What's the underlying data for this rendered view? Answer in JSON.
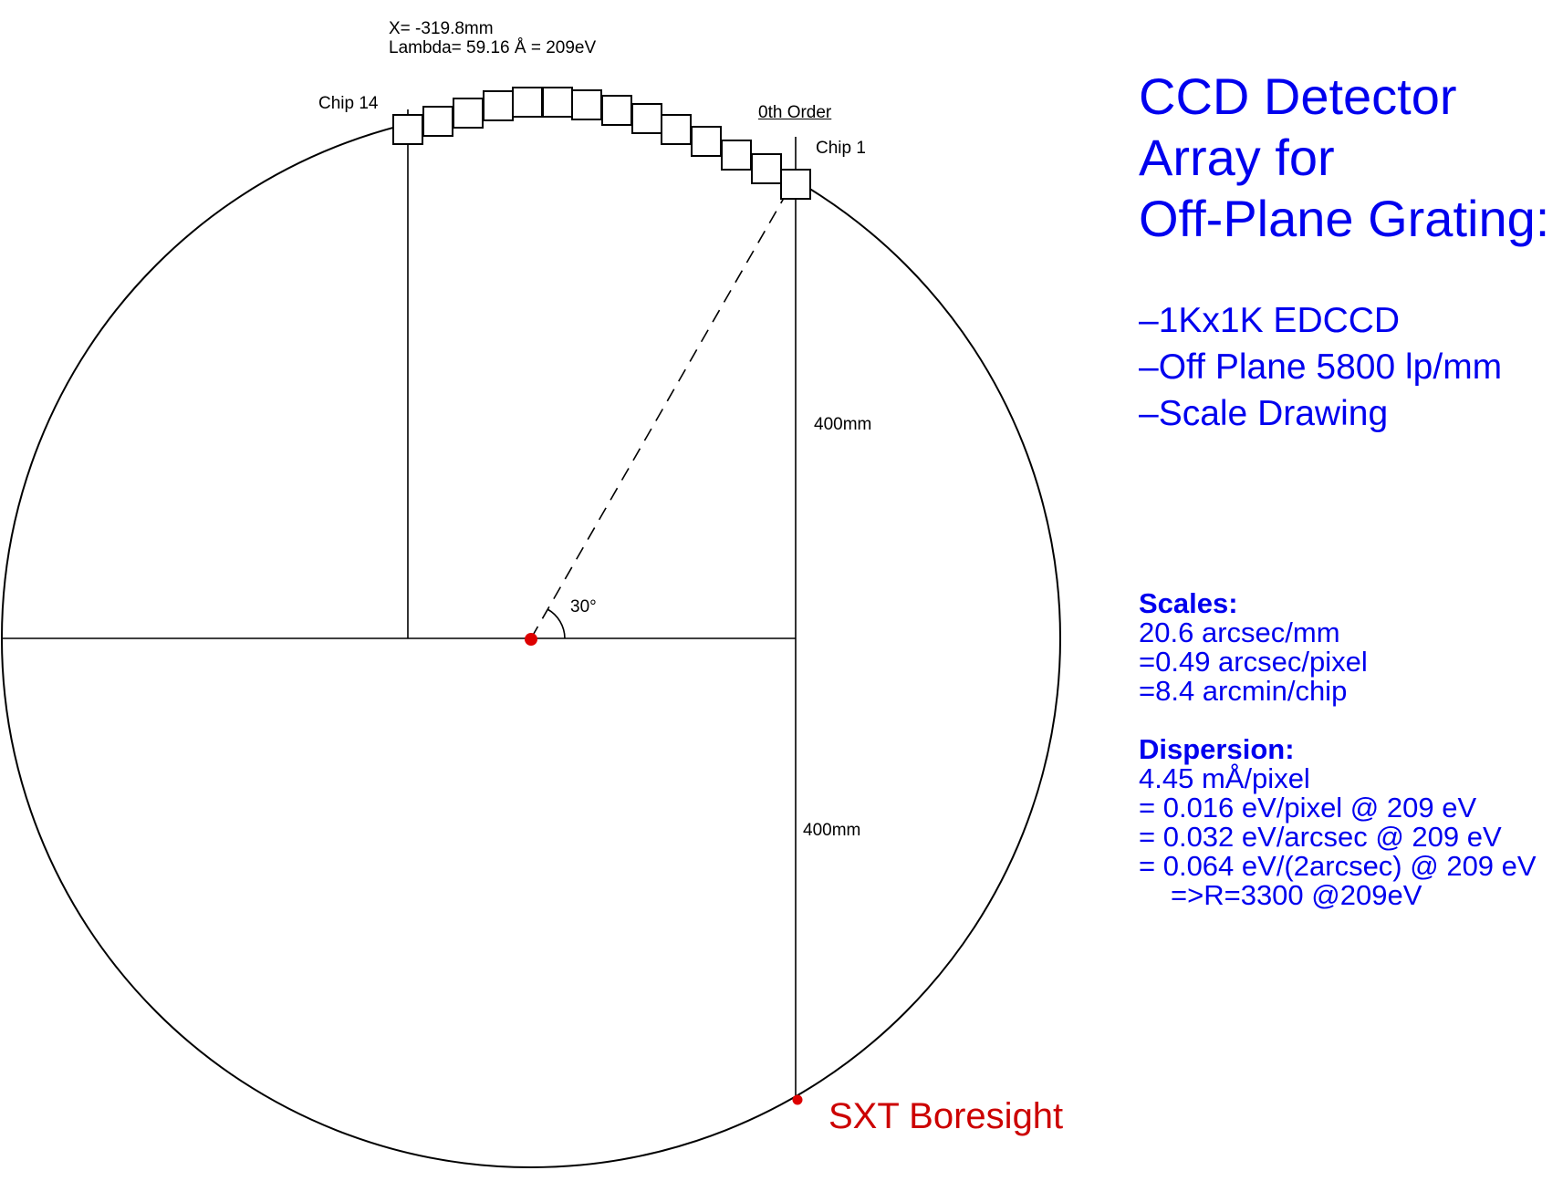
{
  "diagram": {
    "top_annotation": [
      "X= -319.8mm",
      "Lambda= 59.16 Å = 209eV"
    ],
    "chip_14_label": "Chip 14",
    "zeroth_order_label": "0th Order",
    "chip_1_label": "Chip 1",
    "upper_length_label": "400mm",
    "lower_length_label": "400mm",
    "angle_label": "30°",
    "boresight_label": "SXT Boresight",
    "chip_count": 14,
    "accent_red": "#cc0000",
    "text_blue": "#0000ee"
  },
  "title": {
    "lines": [
      "CCD Detector",
      "Array for",
      "Off-Plane Grating:"
    ]
  },
  "bullets": [
    "–1Kx1K EDCCD",
    "–Off Plane 5800 lp/mm",
    "–Scale Drawing"
  ],
  "scales": {
    "heading": "Scales:",
    "lines": [
      "20.6 arcsec/mm",
      "=0.49 arcsec/pixel",
      "=8.4 arcmin/chip"
    ]
  },
  "dispersion": {
    "heading": "Dispersion:",
    "lines": [
      "4.45 mÅ/pixel",
      "= 0.016 eV/pixel @ 209 eV",
      "= 0.032 eV/arcsec @ 209 eV",
      "= 0.064 eV/(2arcsec) @ 209 eV",
      "=>R=3300 @209eV"
    ]
  }
}
